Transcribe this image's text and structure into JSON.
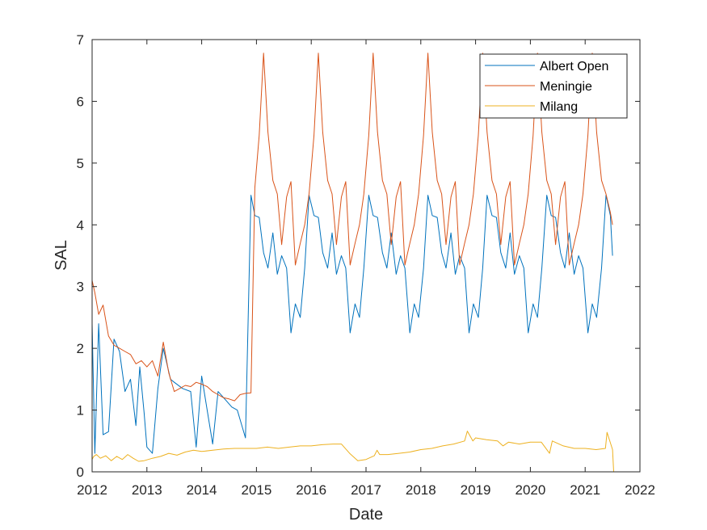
{
  "chart_data": {
    "type": "line",
    "title": "",
    "xlabel": "Date",
    "ylabel": "SAL",
    "xlim": [
      2012,
      2022
    ],
    "ylim": [
      0,
      7
    ],
    "x_ticks": [
      "2012",
      "2013",
      "2014",
      "2015",
      "2016",
      "2017",
      "2018",
      "2019",
      "2020",
      "2021",
      "2022"
    ],
    "y_ticks": [
      "0",
      "1",
      "2",
      "3",
      "4",
      "5",
      "6",
      "7"
    ],
    "grid": false,
    "legend_position": "top-right",
    "series": [
      {
        "name": "Albert Open",
        "color": "#0072BD",
        "x": [
          2012.0,
          2012.05,
          2012.12,
          2012.2,
          2012.3,
          2012.4,
          2012.5,
          2012.6,
          2012.7,
          2012.8,
          2012.87,
          2012.95,
          2013.0,
          2013.1,
          2013.2,
          2013.3,
          2013.43,
          2013.5,
          2013.65,
          2013.8,
          2013.9,
          2014.0,
          2014.1,
          2014.2,
          2014.3,
          2014.45,
          2014.55,
          2014.65,
          2014.8,
          2014.9,
          2014.97,
          2015.05,
          2015.13,
          2015.21,
          2015.3,
          2015.38,
          2015.46,
          2015.55,
          2015.63,
          2015.71,
          2015.8,
          2015.88,
          2015.96,
          2016.05,
          2016.13,
          2016.21,
          2016.3,
          2016.38,
          2016.46,
          2016.55,
          2016.63,
          2016.71,
          2016.8,
          2016.88,
          2016.96,
          2017.05,
          2017.13,
          2017.21,
          2017.3,
          2017.38,
          2017.46,
          2017.55,
          2017.63,
          2017.71,
          2017.8,
          2017.88,
          2017.96,
          2018.05,
          2018.13,
          2018.21,
          2018.3,
          2018.38,
          2018.46,
          2018.55,
          2018.63,
          2018.71,
          2018.8,
          2018.88,
          2018.96,
          2019.05,
          2019.13,
          2019.21,
          2019.3,
          2019.38,
          2019.46,
          2019.55,
          2019.63,
          2019.71,
          2019.8,
          2019.88,
          2019.96,
          2020.05,
          2020.13,
          2020.21,
          2020.3,
          2020.38,
          2020.46,
          2020.55,
          2020.63,
          2020.71,
          2020.8,
          2020.88,
          2020.96,
          2021.05,
          2021.13,
          2021.21,
          2021.3,
          2021.38,
          2021.46,
          2021.5
        ],
        "y": [
          2.4,
          0.3,
          2.4,
          0.6,
          0.65,
          2.15,
          1.95,
          1.3,
          1.5,
          0.75,
          1.7,
          0.95,
          0.4,
          0.3,
          1.35,
          2.0,
          1.5,
          1.45,
          1.35,
          1.3,
          0.4,
          1.55,
          1.0,
          0.45,
          1.3,
          1.15,
          1.05,
          1.0,
          0.55,
          4.48,
          4.15,
          4.12,
          3.55,
          3.3,
          3.87,
          3.2,
          3.5,
          3.3,
          2.25,
          2.72,
          2.5,
          3.3,
          4.48,
          4.15,
          4.12,
          3.55,
          3.3,
          3.87,
          3.2,
          3.5,
          3.3,
          2.25,
          2.72,
          2.5,
          3.3,
          4.48,
          4.15,
          4.12,
          3.55,
          3.3,
          3.87,
          3.2,
          3.5,
          3.3,
          2.25,
          2.72,
          2.5,
          3.3,
          4.48,
          4.15,
          4.12,
          3.55,
          3.3,
          3.87,
          3.2,
          3.5,
          3.3,
          2.25,
          2.72,
          2.5,
          3.3,
          4.48,
          4.15,
          4.12,
          3.55,
          3.3,
          3.87,
          3.2,
          3.5,
          3.3,
          2.25,
          2.72,
          2.5,
          3.3,
          4.48,
          4.15,
          4.12,
          3.55,
          3.3,
          3.87,
          3.2,
          3.5,
          3.3,
          2.25,
          2.72,
          2.5,
          3.3,
          4.48,
          4.15,
          3.5
        ]
      },
      {
        "name": "Meningie",
        "color": "#D95319",
        "x": [
          2012.0,
          2012.05,
          2012.12,
          2012.2,
          2012.3,
          2012.4,
          2012.5,
          2012.6,
          2012.7,
          2012.8,
          2012.9,
          2013.0,
          2013.1,
          2013.2,
          2013.3,
          2013.4,
          2013.5,
          2013.6,
          2013.7,
          2013.8,
          2013.9,
          2014.0,
          2014.1,
          2014.2,
          2014.3,
          2014.4,
          2014.5,
          2014.6,
          2014.7,
          2014.8,
          2014.9,
          2014.97,
          2015.05,
          2015.13,
          2015.21,
          2015.3,
          2015.38,
          2015.46,
          2015.55,
          2015.63,
          2015.71,
          2015.8,
          2015.88,
          2015.96,
          2016.05,
          2016.13,
          2016.21,
          2016.3,
          2016.38,
          2016.46,
          2016.55,
          2016.63,
          2016.71,
          2016.8,
          2016.88,
          2016.96,
          2017.05,
          2017.13,
          2017.21,
          2017.3,
          2017.38,
          2017.46,
          2017.55,
          2017.63,
          2017.71,
          2017.8,
          2017.88,
          2017.96,
          2018.05,
          2018.13,
          2018.21,
          2018.3,
          2018.38,
          2018.46,
          2018.55,
          2018.63,
          2018.71,
          2018.8,
          2018.88,
          2018.96,
          2019.05,
          2019.13,
          2019.21,
          2019.3,
          2019.38,
          2019.46,
          2019.55,
          2019.63,
          2019.71,
          2019.8,
          2019.88,
          2019.96,
          2020.05,
          2020.13,
          2020.21,
          2020.3,
          2020.38,
          2020.46,
          2020.55,
          2020.63,
          2020.71,
          2020.8,
          2020.88,
          2020.96,
          2021.05,
          2021.13,
          2021.21,
          2021.3,
          2021.38,
          2021.46,
          2021.5
        ],
        "y": [
          3.1,
          2.9,
          2.55,
          2.7,
          2.2,
          2.05,
          2.0,
          1.95,
          1.9,
          1.75,
          1.8,
          1.7,
          1.8,
          1.55,
          2.1,
          1.6,
          1.3,
          1.35,
          1.4,
          1.38,
          1.45,
          1.42,
          1.38,
          1.3,
          1.25,
          1.2,
          1.18,
          1.15,
          1.25,
          1.27,
          1.28,
          4.6,
          5.45,
          6.78,
          5.5,
          4.72,
          4.5,
          3.68,
          4.45,
          4.7,
          3.35,
          3.7,
          4.0,
          4.5,
          5.45,
          6.78,
          5.5,
          4.72,
          4.5,
          3.68,
          4.45,
          4.7,
          3.35,
          3.7,
          4.0,
          4.5,
          5.45,
          6.78,
          5.5,
          4.72,
          4.5,
          3.68,
          4.45,
          4.7,
          3.35,
          3.7,
          4.0,
          4.5,
          5.45,
          6.78,
          5.5,
          4.72,
          4.5,
          3.68,
          4.45,
          4.7,
          3.35,
          3.7,
          4.0,
          4.5,
          5.45,
          6.78,
          5.5,
          4.72,
          4.5,
          3.68,
          4.45,
          4.7,
          3.35,
          3.7,
          4.0,
          4.5,
          5.45,
          6.78,
          5.5,
          4.72,
          4.5,
          3.68,
          4.45,
          4.7,
          3.35,
          3.7,
          4.0,
          4.5,
          5.45,
          6.78,
          5.5,
          4.72,
          4.5,
          4.2,
          4.0
        ]
      },
      {
        "name": "Milang",
        "color": "#EDB120",
        "x": [
          2012.0,
          2012.03,
          2012.08,
          2012.15,
          2012.25,
          2012.35,
          2012.45,
          2012.55,
          2012.65,
          2012.75,
          2012.85,
          2012.95,
          2013.1,
          2013.25,
          2013.4,
          2013.55,
          2013.7,
          2013.85,
          2014.0,
          2014.2,
          2014.4,
          2014.6,
          2014.8,
          2015.0,
          2015.2,
          2015.4,
          2015.6,
          2015.8,
          2016.0,
          2016.2,
          2016.4,
          2016.55,
          2016.7,
          2016.85,
          2017.0,
          2017.15,
          2017.2,
          2017.25,
          2017.4,
          2017.6,
          2017.8,
          2018.0,
          2018.2,
          2018.4,
          2018.6,
          2018.8,
          2018.85,
          2018.95,
          2019.0,
          2019.2,
          2019.4,
          2019.5,
          2019.6,
          2019.8,
          2020.0,
          2020.2,
          2020.35,
          2020.4,
          2020.6,
          2020.8,
          2021.0,
          2021.2,
          2021.37,
          2021.4,
          2021.5,
          2021.52
        ],
        "y": [
          0.2,
          0.25,
          0.28,
          0.22,
          0.26,
          0.18,
          0.25,
          0.2,
          0.28,
          0.22,
          0.17,
          0.18,
          0.22,
          0.25,
          0.3,
          0.27,
          0.32,
          0.35,
          0.33,
          0.35,
          0.37,
          0.38,
          0.38,
          0.38,
          0.4,
          0.38,
          0.4,
          0.42,
          0.42,
          0.44,
          0.45,
          0.45,
          0.3,
          0.18,
          0.2,
          0.26,
          0.35,
          0.28,
          0.28,
          0.3,
          0.32,
          0.36,
          0.38,
          0.42,
          0.45,
          0.5,
          0.66,
          0.5,
          0.55,
          0.52,
          0.5,
          0.42,
          0.48,
          0.45,
          0.48,
          0.48,
          0.3,
          0.5,
          0.42,
          0.38,
          0.38,
          0.36,
          0.38,
          0.64,
          0.36,
          0.0
        ]
      }
    ]
  }
}
